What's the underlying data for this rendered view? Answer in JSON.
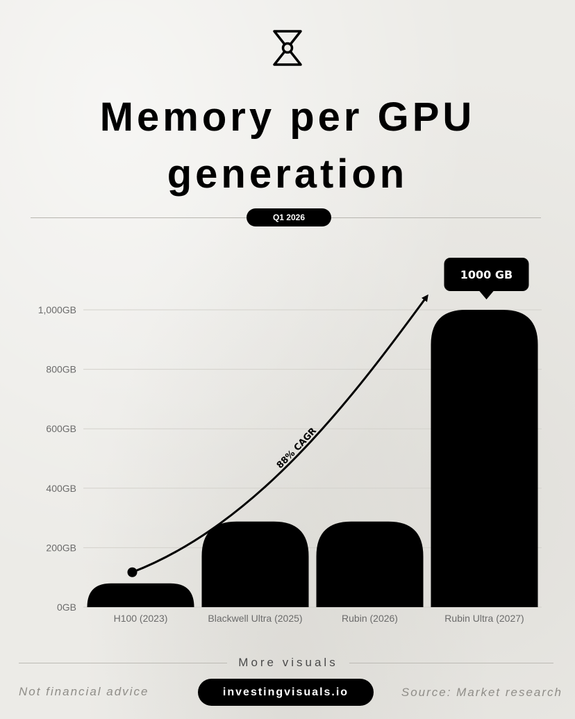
{
  "header": {
    "logo_icon": "hourglass-icon",
    "title_line1": "Memory per GPU",
    "title_line2": "generation",
    "date_badge": "Q1 2026"
  },
  "chart_data": {
    "type": "bar",
    "title": "Memory per GPU generation",
    "categories": [
      "H100 (2023)",
      "Blackwell Ultra (2025)",
      "Rubin (2026)",
      "Rubin Ultra (2027)"
    ],
    "values": [
      80,
      288,
      288,
      1000
    ],
    "unit": "GB",
    "ylim": [
      0,
      1000
    ],
    "yticks": [
      0,
      200,
      400,
      600,
      800,
      1000
    ],
    "ytick_labels": [
      "0GB",
      "200GB",
      "400GB",
      "600GB",
      "800GB",
      "1,000GB"
    ],
    "grid": true,
    "bar_color": "#000000",
    "callout": {
      "category": "Rubin Ultra (2027)",
      "label": "1000 GB"
    },
    "trend_annotation": {
      "label": "88% CAGR",
      "from_category": "H100 (2023)",
      "to_category": "Rubin Ultra (2027)"
    }
  },
  "footer": {
    "more_label": "More visuals",
    "disclaimer": "Not financial advice",
    "site": "investingvisuals.io",
    "source": "Source: Market research"
  }
}
